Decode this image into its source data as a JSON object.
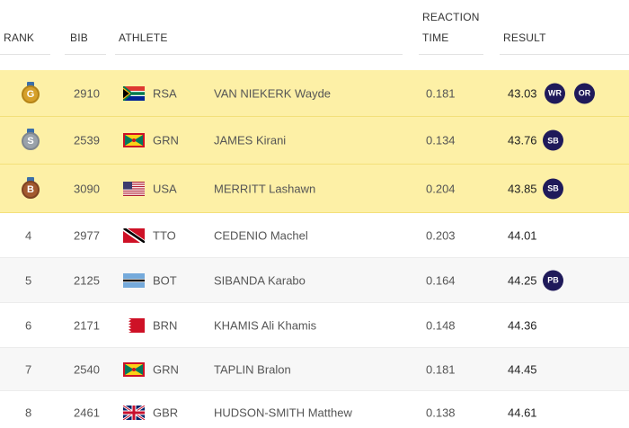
{
  "header": {
    "rank": "RANK",
    "bib": "BIB",
    "athlete": "ATHLETE",
    "reaction_line1": "REACTION",
    "reaction_line2": "TIME",
    "result": "RESULT"
  },
  "rows": [
    {
      "rank": "",
      "medal": "G",
      "bib": "2910",
      "flag": "rsa-flag-icon",
      "country": "RSA",
      "name": "VAN NIEKERK Wayde",
      "reaction": "0.181",
      "result": "43.03",
      "badges": [
        "WR",
        "OR"
      ]
    },
    {
      "rank": "",
      "medal": "S",
      "bib": "2539",
      "flag": "grn-flag-icon",
      "country": "GRN",
      "name": "JAMES Kirani",
      "reaction": "0.134",
      "result": "43.76",
      "badges": [
        "SB"
      ]
    },
    {
      "rank": "",
      "medal": "B",
      "bib": "3090",
      "flag": "usa-flag-icon",
      "country": "USA",
      "name": "MERRITT Lashawn",
      "reaction": "0.204",
      "result": "43.85",
      "badges": [
        "SB"
      ]
    },
    {
      "rank": "4",
      "bib": "2977",
      "flag": "tto-flag-icon",
      "country": "TTO",
      "name": "CEDENIO Machel",
      "reaction": "0.203",
      "result": "44.01",
      "badges": []
    },
    {
      "rank": "5",
      "bib": "2125",
      "flag": "bot-flag-icon",
      "country": "BOT",
      "name": "SIBANDA Karabo",
      "reaction": "0.164",
      "result": "44.25",
      "badges": [
        "PB"
      ]
    },
    {
      "rank": "6",
      "bib": "2171",
      "flag": "brn-flag-icon",
      "country": "BRN",
      "name": "KHAMIS Ali Khamis",
      "reaction": "0.148",
      "result": "44.36",
      "badges": []
    },
    {
      "rank": "7",
      "bib": "2540",
      "flag": "grn-flag-icon",
      "country": "GRN",
      "name": "TAPLIN Bralon",
      "reaction": "0.181",
      "result": "44.45",
      "badges": []
    },
    {
      "rank": "8",
      "bib": "2461",
      "flag": "gbr-flag-icon",
      "country": "GBR",
      "name": "HUDSON-SMITH Matthew",
      "reaction": "0.138",
      "result": "44.61",
      "badges": []
    }
  ],
  "colors": {
    "medal_row_bg": "#fdf0a6",
    "alt_row_bg": "#f7f7f7",
    "badge_bg": "#1f1a5a",
    "gold": "#d6a02a",
    "silver": "#9aa2aa",
    "bronze": "#a35a2f"
  }
}
